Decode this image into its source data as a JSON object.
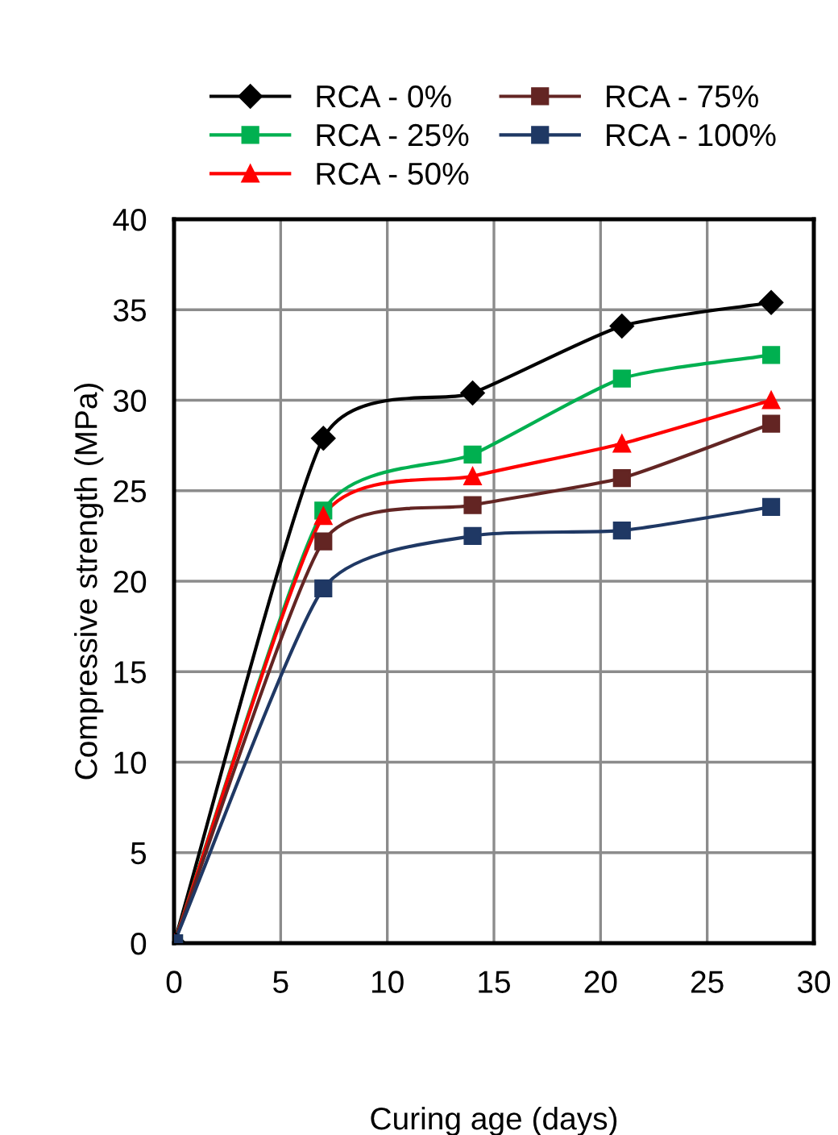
{
  "chart_data": {
    "type": "line",
    "xlabel": "Curing age (days)",
    "ylabel": "Compressive strength (MPa)",
    "x": [
      0,
      7,
      14,
      21,
      28
    ],
    "series": [
      {
        "name": "RCA - 0%",
        "color": "#000000",
        "marker": "diamond",
        "values": [
          0,
          27.9,
          30.4,
          34.1,
          35.4
        ]
      },
      {
        "name": "RCA - 25%",
        "color": "#00b050",
        "marker": "square",
        "values": [
          0,
          23.9,
          27.0,
          31.2,
          32.5
        ]
      },
      {
        "name": "RCA - 50%",
        "color": "#ff0000",
        "marker": "triangle",
        "values": [
          0,
          23.6,
          25.8,
          27.6,
          30.0
        ]
      },
      {
        "name": "RCA - 75%",
        "color": "#632523",
        "marker": "square",
        "values": [
          0,
          22.2,
          24.2,
          25.7,
          28.7
        ]
      },
      {
        "name": "RCA - 100%",
        "color": "#1f3864",
        "marker": "square",
        "values": [
          0,
          19.6,
          22.5,
          22.8,
          24.1
        ]
      }
    ],
    "xlim": [
      0,
      30
    ],
    "xticks": [
      0,
      5,
      10,
      15,
      20,
      25,
      30
    ],
    "ylim": [
      0,
      40
    ],
    "yticks": [
      0,
      5,
      10,
      15,
      20,
      25,
      30,
      35,
      40
    ],
    "grid": true,
    "legend": "top",
    "line_style": "solid"
  }
}
